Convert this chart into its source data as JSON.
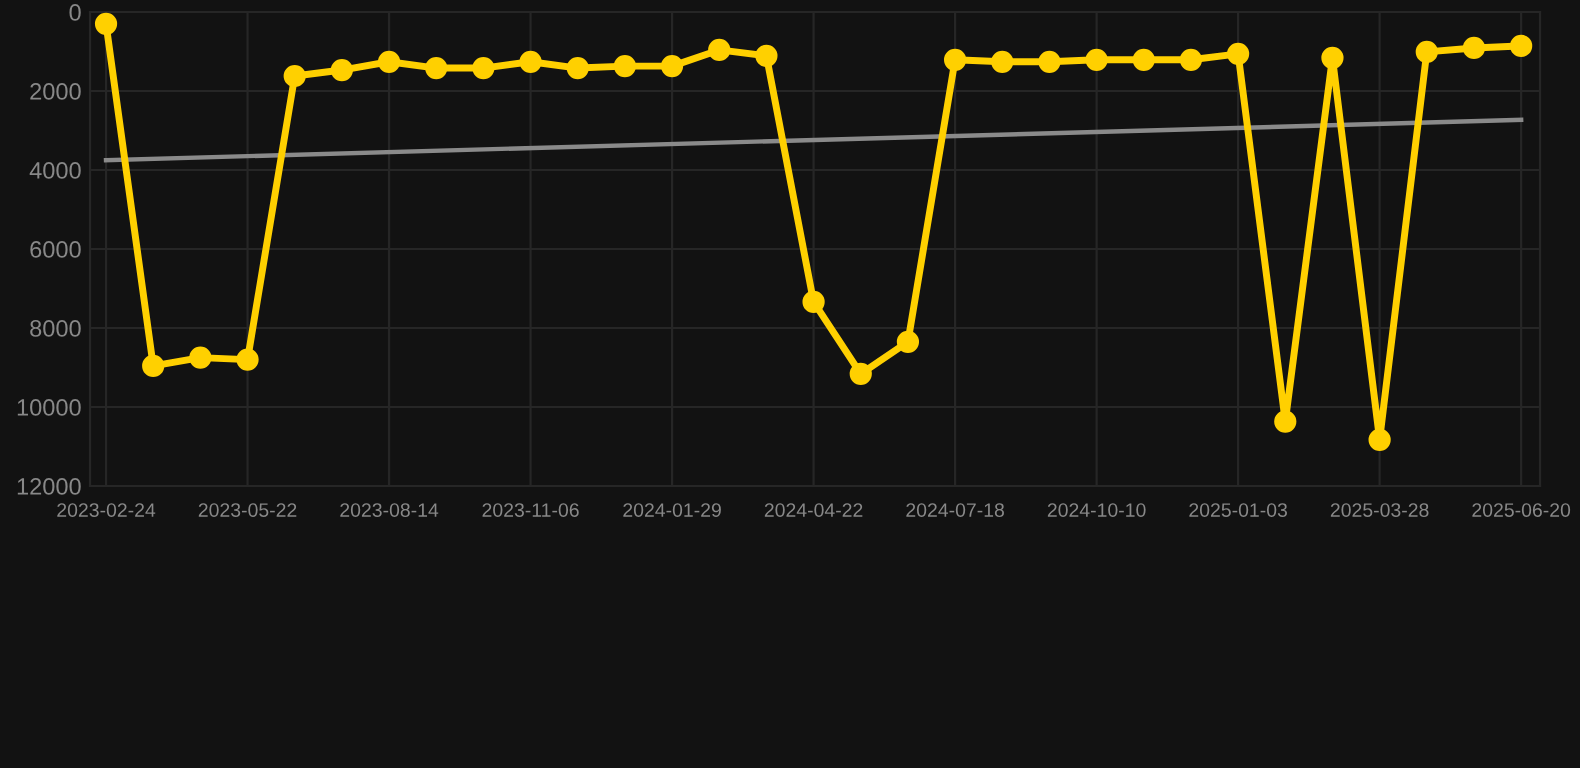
{
  "chart_data": {
    "type": "line",
    "categories": [
      "2023-02-24",
      null,
      null,
      "2023-05-22",
      null,
      null,
      "2023-08-14",
      null,
      null,
      "2023-11-06",
      null,
      null,
      "2024-01-29",
      null,
      null,
      "2024-04-22",
      null,
      null,
      "2024-07-18",
      null,
      null,
      "2024-10-10",
      null,
      null,
      "2025-01-03",
      null,
      null,
      "2025-03-28",
      null,
      null,
      "2025-06-20"
    ],
    "series": [
      {
        "color": "#ffd000",
        "marker": "circle",
        "values": [
          300,
          8960,
          8750,
          8800,
          1620,
          1470,
          1260,
          1420,
          1420,
          1260,
          1420,
          1370,
          1370,
          960,
          1110,
          7340,
          9160,
          8350,
          1210,
          1260,
          1260,
          1210,
          1210,
          1210,
          1060,
          10370,
          1160,
          10830,
          1010,
          910,
          860
        ]
      },
      {
        "type": "line",
        "color": "#8a8a8a",
        "marker": "none",
        "values": [
          3750,
          null,
          null,
          null,
          null,
          null,
          null,
          null,
          null,
          null,
          null,
          null,
          null,
          null,
          null,
          null,
          null,
          null,
          null,
          null,
          null,
          null,
          null,
          null,
          null,
          null,
          null,
          null,
          null,
          null,
          2730
        ]
      }
    ],
    "ylim": [
      12000,
      0
    ],
    "yticks": [
      0,
      2000,
      4000,
      6000,
      8000,
      10000,
      12000
    ],
    "grid": true
  }
}
